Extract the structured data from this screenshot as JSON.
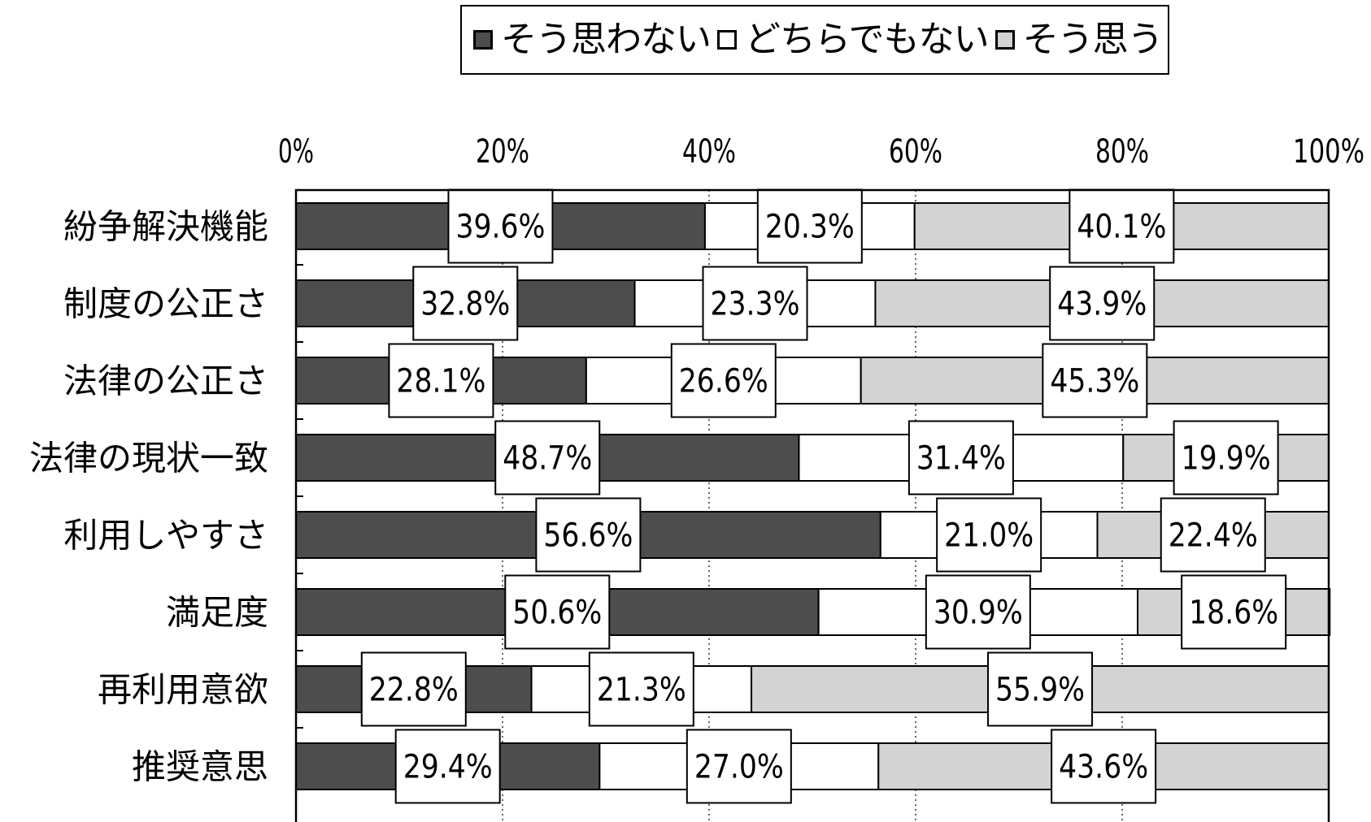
{
  "chart_data": {
    "type": "bar",
    "orientation": "horizontal",
    "stacked": true,
    "percent_stacked": true,
    "categories": [
      "紛争解決機能",
      "制度の公正さ",
      "法律の公正さ",
      "法律の現状一致",
      "利用しやすさ",
      "満足度",
      "再利用意欲",
      "推奨意思"
    ],
    "series": [
      {
        "name": "そう思わない",
        "color": "#4d4d4d",
        "values": [
          39.6,
          32.8,
          28.1,
          48.7,
          56.6,
          50.6,
          22.8,
          29.4
        ]
      },
      {
        "name": "どちらでもない",
        "color": "#ffffff",
        "values": [
          20.3,
          23.3,
          26.6,
          31.4,
          21.0,
          30.9,
          21.3,
          27.0
        ]
      },
      {
        "name": "そう思う",
        "color": "#d3d3d3",
        "values": [
          40.1,
          43.9,
          45.3,
          19.9,
          22.4,
          18.6,
          55.9,
          43.6
        ]
      }
    ],
    "data_labels": [
      [
        "39.6%",
        "20.3%",
        "40.1%"
      ],
      [
        "32.8%",
        "23.3%",
        "43.9%"
      ],
      [
        "28.1%",
        "26.6%",
        "45.3%"
      ],
      [
        "48.7%",
        "31.4%",
        "19.9%"
      ],
      [
        "56.6%",
        "21.0%",
        "22.4%"
      ],
      [
        "50.6%",
        "30.9%",
        "18.6%"
      ],
      [
        "22.8%",
        "21.3%",
        "55.9%"
      ],
      [
        "29.4%",
        "27.0%",
        "43.6%"
      ]
    ],
    "x_ticks": [
      "0%",
      "20%",
      "40%",
      "60%",
      "80%",
      "100%"
    ],
    "xlim": [
      0,
      100
    ],
    "grid": "vertical dotted",
    "legend_position": "top"
  }
}
